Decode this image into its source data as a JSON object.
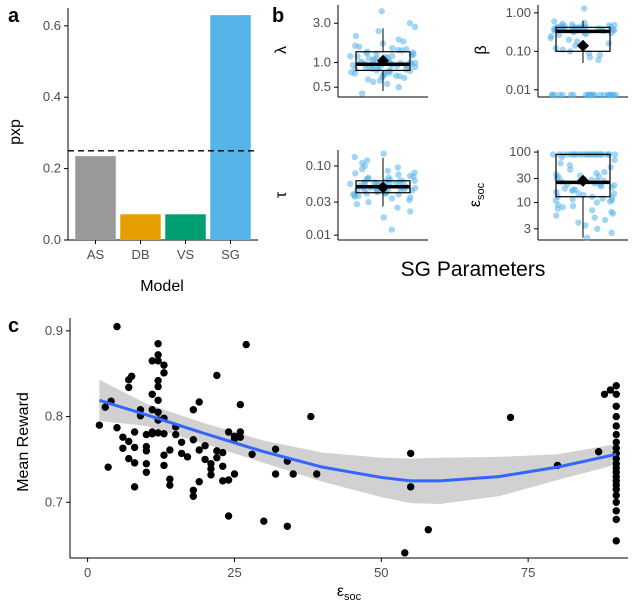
{
  "panel_labels": [
    "a",
    "b",
    "c"
  ],
  "chart_data": [
    {
      "type": "bar",
      "panel": "a",
      "categories": [
        "AS",
        "DB",
        "VS",
        "SG"
      ],
      "values": [
        0.235,
        0.072,
        0.072,
        0.63
      ],
      "colors": [
        "#999999",
        "#e69f00",
        "#009e73",
        "#56b4e9"
      ],
      "ylabel": "pxp",
      "xlabel": "Model",
      "ylim": [
        0,
        0.65
      ],
      "yticks": [
        0.0,
        0.2,
        0.4,
        0.6
      ],
      "ytick_labels": [
        "0.0",
        "0.2",
        "0.4",
        "0.6"
      ],
      "reference_line": {
        "y": 0.25,
        "style": "dashed"
      }
    },
    {
      "type": "scatter",
      "panel": "b",
      "group_label": "SG Parameters",
      "subplots": [
        {
          "name": "lambda",
          "ylabel": "λ",
          "scale": "log",
          "ylim": [
            0.38,
            5.0
          ],
          "yticks": [
            0.5,
            1.0,
            3.0
          ],
          "ytick_labels": [
            "0.5",
            "1.0",
            "3.0"
          ],
          "box": {
            "q1": 0.8,
            "median": 0.95,
            "q3": 1.35,
            "whisker_low": 0.45,
            "whisker_high": 2.6,
            "mean": 1.05
          },
          "points": [
            0.42,
            0.5,
            0.55,
            0.6,
            0.62,
            0.65,
            0.68,
            0.7,
            0.72,
            0.74,
            0.76,
            0.78,
            0.8,
            0.8,
            0.82,
            0.84,
            0.85,
            0.86,
            0.88,
            0.9,
            0.9,
            0.92,
            0.93,
            0.94,
            0.95,
            0.96,
            0.98,
            1.0,
            1.0,
            1.02,
            1.05,
            1.08,
            1.1,
            1.12,
            1.15,
            1.18,
            1.2,
            1.25,
            1.3,
            1.35,
            1.4,
            1.45,
            1.5,
            1.6,
            1.7,
            1.8,
            1.9,
            2.1,
            2.4,
            2.7,
            3.0,
            4.2,
            0.58,
            0.66,
            0.73,
            0.79,
            0.87,
            0.91,
            0.97,
            1.03,
            1.07,
            1.13,
            1.22,
            1.32,
            1.55,
            0.69,
            0.83,
            0.99,
            1.16,
            1.28,
            0.75,
            0.89,
            1.01,
            1.19,
            1.42
          ]
        },
        {
          "name": "beta",
          "ylabel": "β",
          "scale": "log",
          "ylim": [
            0.0065,
            1.6
          ],
          "yticks": [
            0.01,
            0.1,
            1.0
          ],
          "ytick_labels": [
            "0.01",
            "0.10",
            "1.00"
          ],
          "box": {
            "q1": 0.1,
            "median": 0.33,
            "q3": 0.42,
            "whisker_low": 0.05,
            "whisker_high": 0.62,
            "mean": 0.14
          },
          "points": [
            0.0072,
            0.0072,
            0.0072,
            0.0072,
            0.0072,
            0.0072,
            0.0072,
            0.0072,
            0.0072,
            0.0072,
            0.0072,
            0.0072,
            0.0072,
            0.0072,
            0.0072,
            0.0072,
            0.0072,
            0.0072,
            0.0072,
            0.0072,
            0.0072,
            0.0072,
            0.0072,
            0.0072,
            0.06,
            0.07,
            0.08,
            0.09,
            0.1,
            0.11,
            0.12,
            0.14,
            0.16,
            0.18,
            0.2,
            0.22,
            0.25,
            0.28,
            0.3,
            0.32,
            0.34,
            0.35,
            0.36,
            0.37,
            0.38,
            0.39,
            0.4,
            0.4,
            0.41,
            0.42,
            0.42,
            0.43,
            0.44,
            0.45,
            0.46,
            0.48,
            0.5,
            0.52,
            0.55,
            0.6,
            1.3,
            0.33,
            0.36,
            0.38,
            0.41,
            0.44,
            0.47,
            0.3,
            0.27,
            0.35,
            0.39,
            0.43,
            0.37,
            0.4,
            0.34
          ]
        },
        {
          "name": "tau",
          "ylabel": "τ",
          "scale": "log",
          "ylim": [
            0.0085,
            0.17
          ],
          "yticks": [
            0.01,
            0.03,
            0.1
          ],
          "ytick_labels": [
            "0.01",
            "0.03",
            "0.10"
          ],
          "box": {
            "q1": 0.041,
            "median": 0.05,
            "q3": 0.061,
            "whisker_low": 0.026,
            "whisker_high": 0.13,
            "mean": 0.049
          },
          "points": [
            0.012,
            0.018,
            0.022,
            0.025,
            0.028,
            0.03,
            0.032,
            0.034,
            0.035,
            0.036,
            0.037,
            0.038,
            0.039,
            0.04,
            0.04,
            0.041,
            0.042,
            0.043,
            0.044,
            0.045,
            0.046,
            0.047,
            0.048,
            0.049,
            0.05,
            0.05,
            0.051,
            0.052,
            0.053,
            0.054,
            0.055,
            0.056,
            0.057,
            0.058,
            0.059,
            0.06,
            0.062,
            0.064,
            0.066,
            0.068,
            0.07,
            0.072,
            0.075,
            0.078,
            0.08,
            0.085,
            0.09,
            0.095,
            0.1,
            0.11,
            0.12,
            0.135,
            0.15,
            0.044,
            0.047,
            0.051,
            0.055,
            0.058,
            0.061,
            0.043,
            0.049,
            0.053,
            0.057,
            0.046,
            0.052,
            0.039,
            0.063,
            0.067,
            0.041,
            0.048
          ]
        },
        {
          "name": "eps_soc",
          "ylabel": "εsoc",
          "scale": "log",
          "ylim": [
            1.8,
            110
          ],
          "yticks": [
            3,
            10,
            30,
            100
          ],
          "ytick_labels": [
            "3",
            "10",
            "30",
            "100"
          ],
          "box": {
            "q1": 13,
            "median": 25,
            "q3": 90,
            "whisker_low": 2,
            "whisker_high": 90,
            "mean": 27
          },
          "points": [
            2,
            2.5,
            3,
            3.5,
            4,
            4.5,
            5,
            5.5,
            6,
            6.5,
            7,
            7.5,
            8,
            9,
            10,
            10.5,
            11,
            11.5,
            12,
            12.5,
            13,
            14,
            15,
            16,
            17,
            18,
            19,
            20,
            21,
            22,
            23,
            24,
            25,
            26,
            27,
            28,
            30,
            32,
            34,
            36,
            38,
            40,
            45,
            50,
            55,
            60,
            70,
            80,
            90,
            90,
            90,
            90,
            90,
            90,
            90,
            90,
            90,
            90,
            90,
            90,
            90,
            90,
            90,
            90,
            90,
            90,
            90,
            90,
            90,
            90,
            90,
            90,
            90,
            90,
            15,
            18,
            22,
            27,
            33,
            11,
            13,
            8.5
          ]
        }
      ]
    },
    {
      "type": "scatter",
      "panel": "c",
      "xlabel": "εsoc",
      "ylabel": "Mean Reward",
      "xlim": [
        -3,
        92
      ],
      "ylim": [
        0.635,
        0.915
      ],
      "xticks": [
        0,
        25,
        50,
        75
      ],
      "xtick_labels": [
        "0",
        "25",
        "50",
        "75"
      ],
      "yticks": [
        0.7,
        0.8,
        0.9
      ],
      "ytick_labels": [
        "0.7",
        "0.8",
        "0.9"
      ],
      "points": [
        [
          2,
          0.79
        ],
        [
          3,
          0.811
        ],
        [
          3.5,
          0.741
        ],
        [
          4,
          0.818
        ],
        [
          5,
          0.905
        ],
        [
          5,
          0.787
        ],
        [
          6,
          0.776
        ],
        [
          6,
          0.763
        ],
        [
          7,
          0.834
        ],
        [
          7,
          0.843
        ],
        [
          7.5,
          0.847
        ],
        [
          7,
          0.751
        ],
        [
          7,
          0.771
        ],
        [
          8,
          0.782
        ],
        [
          8,
          0.764
        ],
        [
          8,
          0.718
        ],
        [
          8,
          0.746
        ],
        [
          9,
          0.808
        ],
        [
          9,
          0.801
        ],
        [
          10,
          0.779
        ],
        [
          10,
          0.765
        ],
        [
          10,
          0.76
        ],
        [
          10,
          0.745
        ],
        [
          10,
          0.735
        ],
        [
          11,
          0.865
        ],
        [
          11,
          0.826
        ],
        [
          11,
          0.808
        ],
        [
          11,
          0.782
        ],
        [
          11,
          0.78
        ],
        [
          12,
          0.885
        ],
        [
          12,
          0.872
        ],
        [
          12,
          0.865
        ],
        [
          12,
          0.842
        ],
        [
          12,
          0.835
        ],
        [
          12,
          0.819
        ],
        [
          12,
          0.805
        ],
        [
          12,
          0.796
        ],
        [
          12,
          0.781
        ],
        [
          13,
          0.86
        ],
        [
          13,
          0.851
        ],
        [
          13,
          0.798
        ],
        [
          13,
          0.78
        ],
        [
          13,
          0.755
        ],
        [
          13,
          0.743
        ],
        [
          14,
          0.761
        ],
        [
          14,
          0.72
        ],
        [
          14,
          0.727
        ],
        [
          15,
          0.788
        ],
        [
          15,
          0.779
        ],
        [
          16,
          0.757
        ],
        [
          16,
          0.77
        ],
        [
          17,
          0.753
        ],
        [
          18,
          0.808
        ],
        [
          18,
          0.773
        ],
        [
          18,
          0.714
        ],
        [
          18,
          0.707
        ],
        [
          19,
          0.817
        ],
        [
          19,
          0.761
        ],
        [
          19,
          0.724
        ],
        [
          20,
          0.766
        ],
        [
          20,
          0.75
        ],
        [
          21,
          0.745
        ],
        [
          21,
          0.739
        ],
        [
          21,
          0.732
        ],
        [
          22,
          0.848
        ],
        [
          22,
          0.76
        ],
        [
          22,
          0.752
        ],
        [
          23,
          0.758
        ],
        [
          23,
          0.742
        ],
        [
          23,
          0.725
        ],
        [
          24,
          0.782
        ],
        [
          24,
          0.726
        ],
        [
          24,
          0.684
        ],
        [
          25,
          0.777
        ],
        [
          25,
          0.774
        ],
        [
          25,
          0.733
        ],
        [
          26,
          0.814
        ],
        [
          26,
          0.782
        ],
        [
          26,
          0.776
        ],
        [
          27,
          0.884
        ],
        [
          28,
          0.756
        ],
        [
          30,
          0.678
        ],
        [
          32,
          0.762
        ],
        [
          32,
          0.733
        ],
        [
          34,
          0.748
        ],
        [
          34,
          0.672
        ],
        [
          35,
          0.733
        ],
        [
          38,
          0.8
        ],
        [
          39,
          0.733
        ],
        [
          55,
          0.757
        ],
        [
          55,
          0.718
        ],
        [
          54,
          0.641
        ],
        [
          58,
          0.668
        ],
        [
          72,
          0.799
        ],
        [
          80,
          0.743
        ],
        [
          87,
          0.759
        ],
        [
          88,
          0.826
        ],
        [
          89,
          0.831
        ],
        [
          90,
          0.836
        ],
        [
          90,
          0.826
        ],
        [
          90,
          0.812
        ],
        [
          90,
          0.8
        ],
        [
          90,
          0.789
        ],
        [
          90,
          0.779
        ],
        [
          90,
          0.77
        ],
        [
          90,
          0.763
        ],
        [
          90,
          0.757
        ],
        [
          90,
          0.751
        ],
        [
          90,
          0.745
        ],
        [
          90,
          0.74
        ],
        [
          90,
          0.735
        ],
        [
          90,
          0.73
        ],
        [
          90,
          0.725
        ],
        [
          90,
          0.72
        ],
        [
          90,
          0.715
        ],
        [
          90,
          0.708
        ],
        [
          90,
          0.7
        ],
        [
          90,
          0.69
        ],
        [
          90,
          0.68
        ],
        [
          90,
          0.655
        ]
      ],
      "smooth_fit": {
        "x": [
          2,
          10,
          20,
          30,
          40,
          50,
          55,
          60,
          70,
          80,
          90
        ],
        "y": [
          0.819,
          0.802,
          0.78,
          0.759,
          0.741,
          0.729,
          0.725,
          0.725,
          0.73,
          0.741,
          0.756
        ],
        "se_low": [
          0.795,
          0.789,
          0.768,
          0.746,
          0.724,
          0.706,
          0.699,
          0.698,
          0.707,
          0.726,
          0.744
        ],
        "se_high": [
          0.843,
          0.815,
          0.792,
          0.772,
          0.758,
          0.752,
          0.751,
          0.752,
          0.753,
          0.756,
          0.768
        ]
      },
      "colors": {
        "points": "#000000",
        "fit": "#3366ff",
        "band": "#cccccc"
      }
    }
  ]
}
